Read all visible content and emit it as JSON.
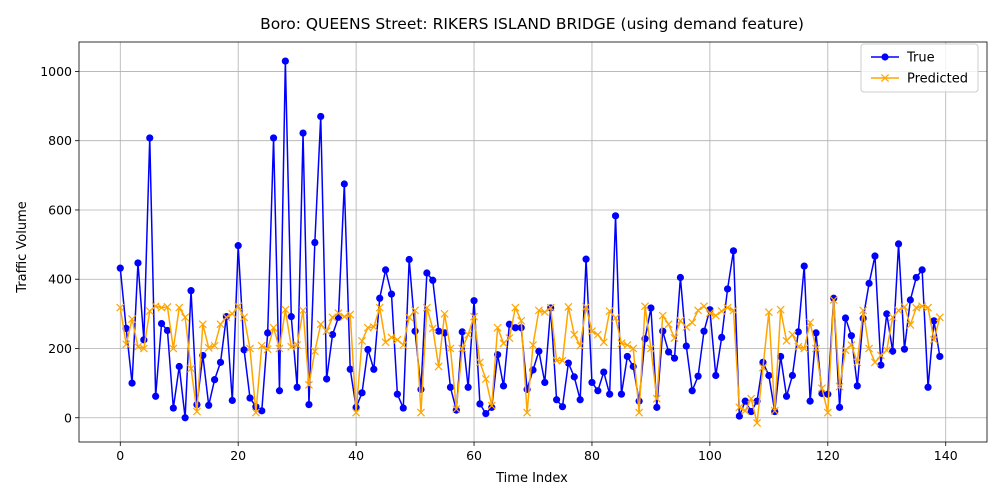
{
  "chart_data": {
    "type": "line",
    "title": "Boro: QUEENS Street: RIKERS ISLAND BRIDGE (using demand feature)",
    "xlabel": "Time Index",
    "ylabel": "Traffic Volume",
    "xlim": [
      -7,
      147
    ],
    "ylim": [
      -70,
      1085
    ],
    "xticks": [
      0,
      20,
      40,
      60,
      80,
      100,
      120,
      140
    ],
    "yticks": [
      0,
      200,
      400,
      600,
      800,
      1000
    ],
    "grid": true,
    "legend": "top-right",
    "series": [
      {
        "name": "True",
        "color": "#0000ff",
        "marker": "o",
        "values": [
          432,
          258,
          100,
          447,
          225,
          808,
          62,
          272,
          252,
          28,
          148,
          0,
          367,
          38,
          180,
          36,
          110,
          160,
          292,
          50,
          497,
          196,
          57,
          32,
          20,
          245,
          808,
          78,
          1030,
          292,
          88,
          822,
          38,
          506,
          870,
          112,
          240,
          290,
          675,
          140,
          30,
          72,
          197,
          140,
          345,
          427,
          357,
          68,
          28,
          457,
          250,
          82,
          418,
          397,
          250,
          245,
          88,
          22,
          248,
          88,
          338,
          40,
          12,
          30,
          182,
          92,
          270,
          260,
          260,
          82,
          138,
          192,
          102,
          317,
          52,
          32,
          158,
          118,
          52,
          458,
          102,
          78,
          132,
          68,
          583,
          68,
          177,
          148,
          48,
          228,
          317,
          30,
          250,
          190,
          172,
          405,
          207,
          78,
          120,
          250,
          312,
          122,
          232,
          372,
          482,
          5,
          48,
          18,
          48,
          160,
          122,
          18,
          177,
          62,
          122,
          248,
          438,
          48,
          245,
          70,
          68,
          345,
          30,
          288,
          237,
          92,
          287,
          388,
          467,
          152,
          300,
          192,
          502,
          198,
          340,
          405,
          427,
          88,
          280,
          177
        ]
      },
      {
        "name": "Predicted",
        "color": "#ffa500",
        "marker": "x",
        "values": [
          318,
          212,
          285,
          205,
          200,
          308,
          322,
          318,
          320,
          200,
          318,
          290,
          142,
          18,
          270,
          202,
          208,
          270,
          290,
          300,
          322,
          290,
          200,
          15,
          208,
          198,
          260,
          200,
          312,
          205,
          210,
          310,
          95,
          192,
          270,
          250,
          290,
          302,
          292,
          298,
          15,
          222,
          260,
          262,
          318,
          218,
          232,
          225,
          210,
          290,
          310,
          15,
          318,
          258,
          148,
          300,
          200,
          25,
          200,
          240,
          292,
          160,
          112,
          35,
          260,
          215,
          230,
          318,
          280,
          15,
          210,
          310,
          305,
          318,
          165,
          165,
          320,
          240,
          208,
          320,
          250,
          240,
          218,
          308,
          288,
          215,
          210,
          200,
          15,
          322,
          200,
          55,
          295,
          270,
          230,
          280,
          262,
          275,
          310,
          322,
          302,
          295,
          308,
          318,
          310,
          30,
          20,
          55,
          -15,
          145,
          305,
          20,
          312,
          222,
          240,
          205,
          200,
          275,
          200,
          85,
          15,
          340,
          90,
          195,
          210,
          160,
          310,
          200,
          160,
          180,
          195,
          290,
          310,
          320,
          268,
          318,
          322,
          318,
          225,
          290
        ]
      }
    ]
  }
}
